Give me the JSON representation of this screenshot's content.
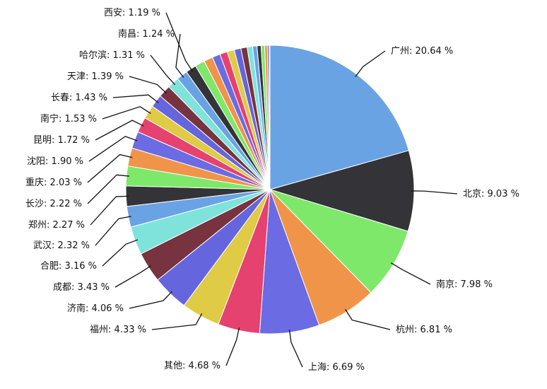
{
  "chart_data": {
    "type": "pie",
    "categories": [
      "广州",
      "北京",
      "南京",
      "杭州",
      "上海",
      "其他",
      "福州",
      "济南",
      "成都",
      "合肥",
      "武汉",
      "郑州",
      "长沙",
      "重庆",
      "沈阳",
      "昆明",
      "南宁",
      "长春",
      "天津",
      "哈尔滨",
      "南昌",
      "西安",
      null,
      null,
      null,
      null,
      null,
      null,
      null,
      null,
      null,
      null,
      null,
      null,
      null,
      null
    ],
    "values": [
      20.64,
      9.03,
      7.98,
      6.81,
      6.69,
      4.68,
      4.33,
      4.06,
      3.43,
      3.16,
      2.32,
      2.27,
      2.22,
      2.03,
      1.9,
      1.72,
      1.53,
      1.43,
      1.39,
      1.31,
      1.24,
      1.19,
      1.1,
      1.0,
      0.9,
      0.85,
      0.8,
      0.75,
      0.7,
      0.6,
      0.5,
      0.45,
      0.4,
      0.3,
      0.2,
      0.09
    ],
    "value_labels": [
      ": 20.64 %",
      ": 9.03 %",
      ": 7.98 %",
      ": 6.81 %",
      ": 6.69 %",
      ": 4.68 %",
      ": 4.33 %",
      ": 4.06 %",
      ": 3.43 %",
      ": 3.16 %",
      ": 2.32 %",
      ": 2.27 %",
      ": 2.22 %",
      ": 2.03 %",
      ": 1.90 %",
      ": 1.72 %",
      ": 1.53 %",
      ": 1.43 %",
      ": 1.39 %",
      ": 1.31 %",
      ": 1.24 %",
      ": 1.19 %",
      null,
      null,
      null,
      null,
      null,
      null,
      null,
      null,
      null,
      null,
      null,
      null,
      null,
      null
    ],
    "colors": [
      "#6aa3e4",
      "#333338",
      "#7ee86a",
      "#f0944a",
      "#6b6be3",
      "#e5426f",
      "#dfcb45",
      "#6565dd",
      "#77333f",
      "#7fe3dc"
    ]
  }
}
